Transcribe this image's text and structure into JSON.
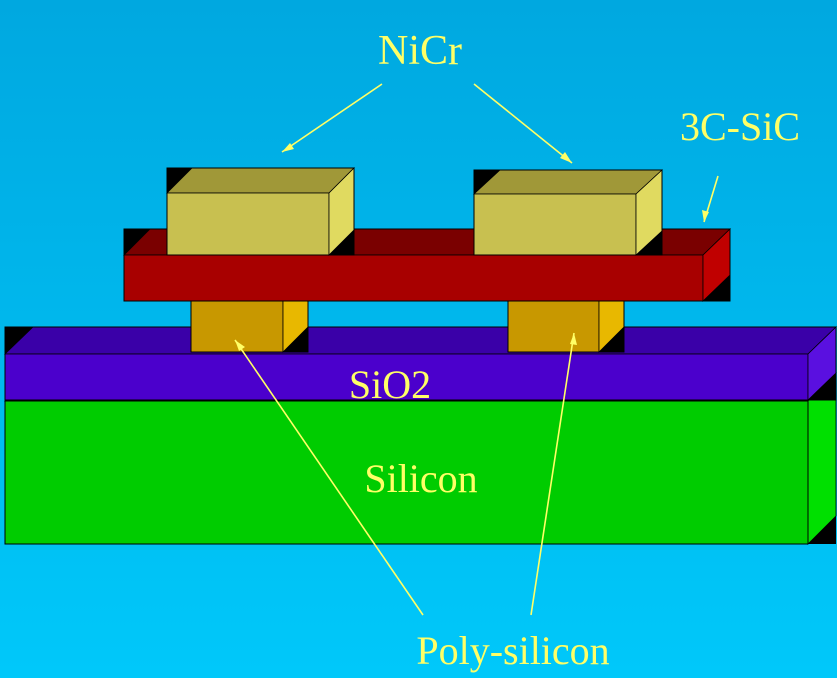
{
  "labels": {
    "nicr": "NiCr",
    "sic": "3C-SiC",
    "sio2": "SiO2",
    "silicon": "Silicon",
    "polysilicon": "Poly-silicon"
  },
  "colors": {
    "background_top": "#00A8E0",
    "background_bottom": "#00C8FA",
    "label_text": "#FFFF66",
    "arrow": "#FFFF66",
    "edge": "#000000",
    "silicon_front": "#00CC00",
    "silicon_top": "#00A800",
    "silicon_side": "#00E000",
    "sio2_front": "#4B00CC",
    "sio2_top": "#3A00A8",
    "sio2_side": "#5A10E0",
    "polysilicon_front": "#C89800",
    "polysilicon_top": "#A87C00",
    "polysilicon_side": "#E8B800",
    "sic_front": "#A80000",
    "sic_top": "#7A0000",
    "sic_side": "#C00000",
    "nicr_front": "#C8C050",
    "nicr_top": "#A09838",
    "nicr_side": "#E0DA60",
    "chip": "#000000"
  }
}
